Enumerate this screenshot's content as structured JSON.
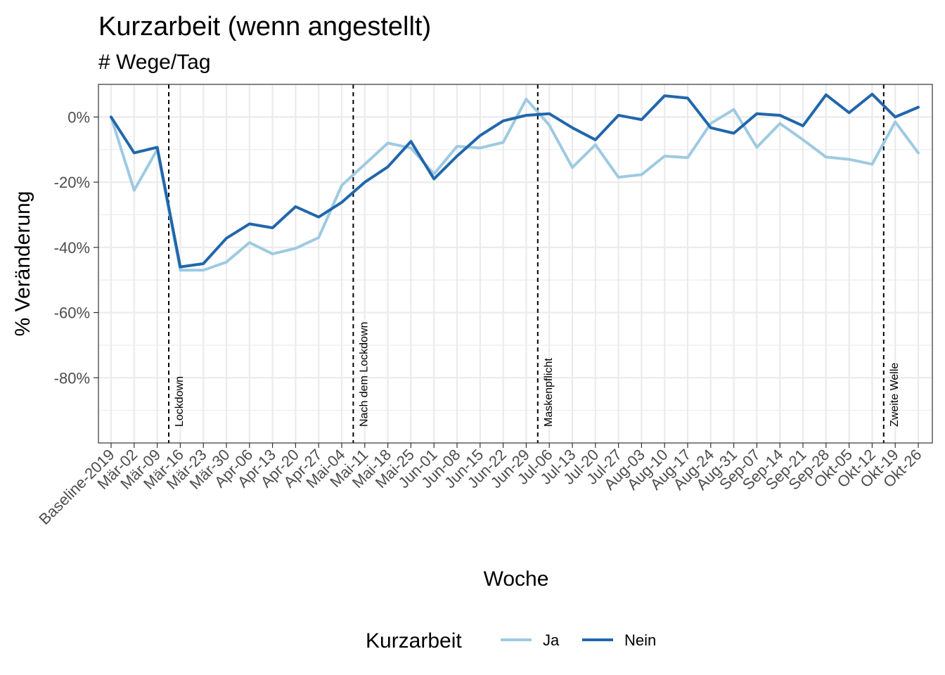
{
  "chart_data": {
    "type": "line",
    "title": "Kurzarbeit (wenn angestellt)",
    "subtitle": "# Wege/Tag",
    "xlabel": "Woche",
    "ylabel": "% Veränderung",
    "categories": [
      "Baseline-2019",
      "Mär-02",
      "Mär-09",
      "Mär-16",
      "Mär-23",
      "Mär-30",
      "Apr-06",
      "Apr-13",
      "Apr-20",
      "Apr-27",
      "Mai-04",
      "Mai-11",
      "Mai-18",
      "Mai-25",
      "Jun-01",
      "Jun-08",
      "Jun-15",
      "Jun-22",
      "Jun-29",
      "Jul-06",
      "Jul-13",
      "Jul-20",
      "Jul-27",
      "Aug-03",
      "Aug-10",
      "Aug-17",
      "Aug-24",
      "Aug-31",
      "Sep-07",
      "Sep-14",
      "Sep-21",
      "Sep-28",
      "Okt-05",
      "Okt-12",
      "Okt-19",
      "Okt-26"
    ],
    "series": [
      {
        "name": "Ja",
        "color": "#9ecae1",
        "values": [
          0,
          -22.5,
          -10,
          -47,
          -47,
          -44.5,
          -38.5,
          -42,
          -40.3,
          -37,
          -21,
          -14.5,
          -8,
          -9.5,
          -17.5,
          -9,
          -9.5,
          -7.8,
          5.5,
          -2.5,
          -15.5,
          -8.5,
          -18.5,
          -17.7,
          -12,
          -12.5,
          -2,
          2.3,
          -9.3,
          -2,
          -7,
          -12.3,
          -13,
          -14.5,
          -1.5,
          -11
        ]
      },
      {
        "name": "Nein",
        "color": "#2166ac",
        "values": [
          0,
          -11,
          -9.3,
          -46,
          -45,
          -37.2,
          -32.8,
          -34,
          -27.5,
          -30.7,
          -26.2,
          -20,
          -15.3,
          -7.5,
          -19,
          -12,
          -5.7,
          -1.2,
          0.5,
          1,
          -3.3,
          -7,
          0.5,
          -0.8,
          6.5,
          5.8,
          -3.3,
          -5,
          1,
          0.5,
          -2.7,
          6.8,
          1.3,
          7,
          0,
          3
        ]
      }
    ],
    "events": [
      {
        "label": "Lockdown",
        "x": 2.5
      },
      {
        "label": "Nach dem Lockdown",
        "x": 10.5
      },
      {
        "label": "Maskenpflicht",
        "x": 18.5
      },
      {
        "label": "Zweite Welle",
        "x": 33.5
      }
    ],
    "ylim": [
      -100,
      10
    ],
    "yticks": [
      0,
      -20,
      -40,
      -60,
      -80
    ],
    "ytick_labels": [
      "0%",
      "-20%",
      "-40%",
      "-60%",
      "-80%"
    ],
    "grid": true,
    "legend": {
      "title": "Kurzarbeit",
      "position": "bottom"
    }
  }
}
